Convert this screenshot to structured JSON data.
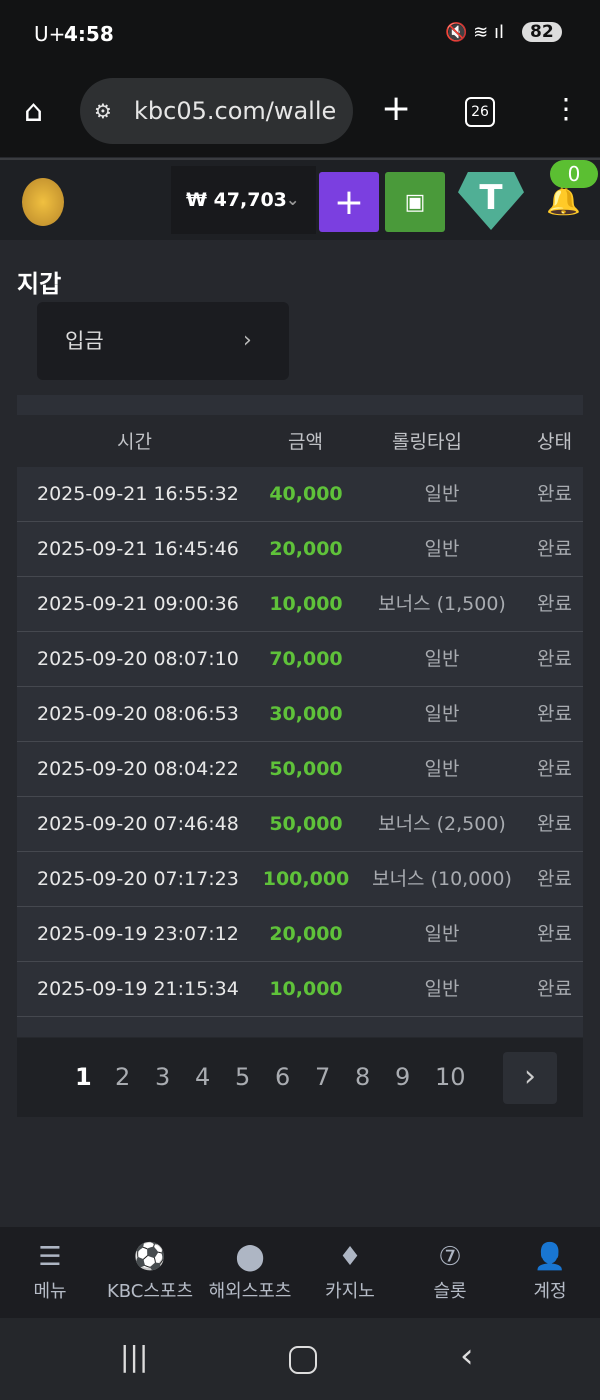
{
  "status_bar": {
    "carrier": "U+",
    "time": "4:58",
    "battery": "82"
  },
  "browser": {
    "url": "kbc05.com/walle",
    "tab_count": "26"
  },
  "header": {
    "balance": "₩ 47,703",
    "notification_count": "0"
  },
  "page": {
    "title": "지갑",
    "deposit_label": "입금"
  },
  "table": {
    "headers": [
      "시간",
      "금액",
      "롤링타입",
      "상태"
    ],
    "rows": [
      [
        "2025-09-21 16:55:32",
        "40,000",
        "일반",
        "완료"
      ],
      [
        "2025-09-21 16:45:46",
        "20,000",
        "일반",
        "완료"
      ],
      [
        "2025-09-21 09:00:36",
        "10,000",
        "보너스 (1,500)",
        "완료"
      ],
      [
        "2025-09-20 08:07:10",
        "70,000",
        "일반",
        "완료"
      ],
      [
        "2025-09-20 08:06:53",
        "30,000",
        "일반",
        "완료"
      ],
      [
        "2025-09-20 08:04:22",
        "50,000",
        "일반",
        "완료"
      ],
      [
        "2025-09-20 07:46:48",
        "50,000",
        "보너스 (2,500)",
        "완료"
      ],
      [
        "2025-09-20 07:17:23",
        "100,000",
        "보너스 (10,000)",
        "완료"
      ],
      [
        "2025-09-19 23:07:12",
        "20,000",
        "일반",
        "완료"
      ],
      [
        "2025-09-19 21:15:34",
        "10,000",
        "일반",
        "완료"
      ]
    ]
  },
  "pagination": {
    "pages": [
      "1",
      "2",
      "3",
      "4",
      "5",
      "6",
      "7",
      "8",
      "9",
      "10"
    ],
    "current": "1"
  },
  "bottom_nav": [
    {
      "label": "메뉴",
      "icon": "menu-search-icon"
    },
    {
      "label": "KBC스포츠",
      "icon": "soccer-ball-icon"
    },
    {
      "label": "해외스포츠",
      "icon": "dice-icon"
    },
    {
      "label": "카지노",
      "icon": "cards-icon"
    },
    {
      "label": "슬롯",
      "icon": "slot-icon"
    },
    {
      "label": "계정",
      "icon": "account-icon"
    }
  ],
  "colors": {
    "amount": "#5fc23a",
    "plus_button": "#7b3fe0",
    "wallet_button": "#4a9a3a",
    "tether": "#50af95",
    "badge": "#5bbf32"
  }
}
